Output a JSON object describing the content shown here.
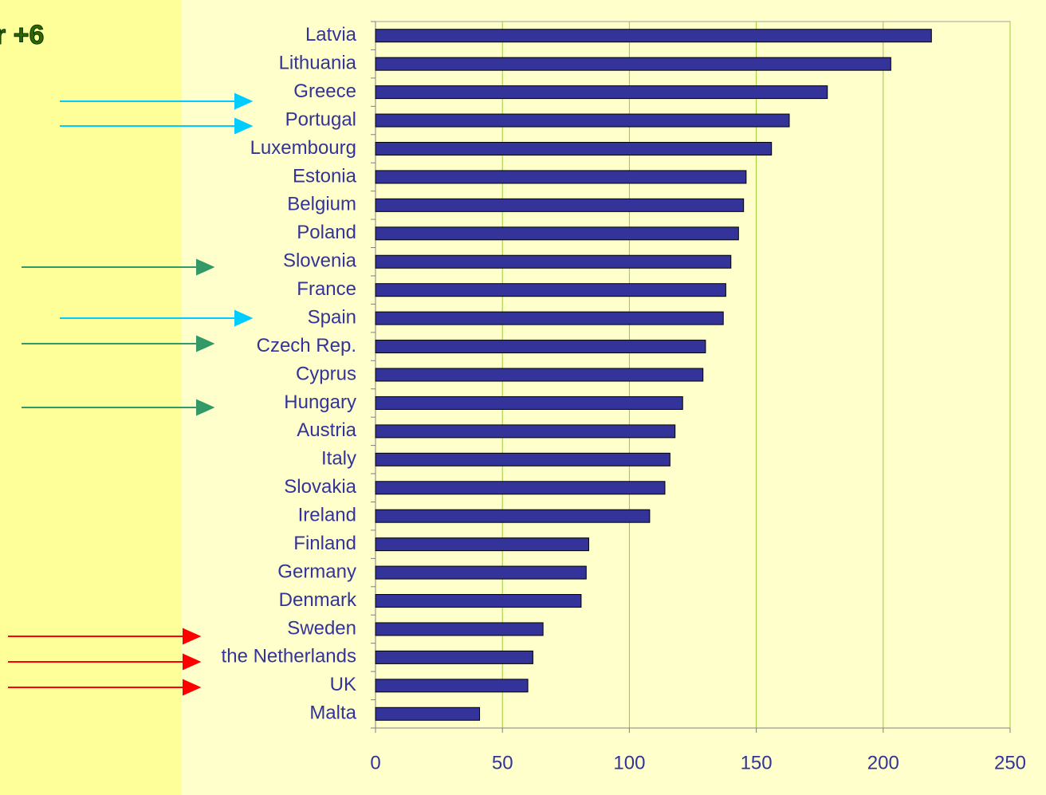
{
  "chart_data": {
    "type": "barh",
    "title": "r +6",
    "categories": [
      "Latvia",
      "Lithuania",
      "Greece",
      "Portugal",
      "Luxembourg",
      "Estonia",
      "Belgium",
      "Poland",
      "Slovenia",
      "France",
      "Spain",
      "Czech Rep.",
      "Cyprus",
      "Hungary",
      "Austria",
      "Italy",
      "Slovakia",
      "Ireland",
      "Finland",
      "Germany",
      "Denmark",
      "Sweden",
      "the Netherlands",
      "UK",
      "Malta"
    ],
    "values": [
      219,
      203,
      178,
      163,
      156,
      146,
      145,
      143,
      140,
      138,
      137,
      130,
      129,
      121,
      118,
      116,
      114,
      108,
      84,
      83,
      81,
      66,
      62,
      60,
      41
    ],
    "color": "#333399",
    "xlim": [
      0,
      250
    ],
    "xticks": [
      0,
      50,
      100,
      150,
      200,
      250
    ],
    "grid": true
  }
}
